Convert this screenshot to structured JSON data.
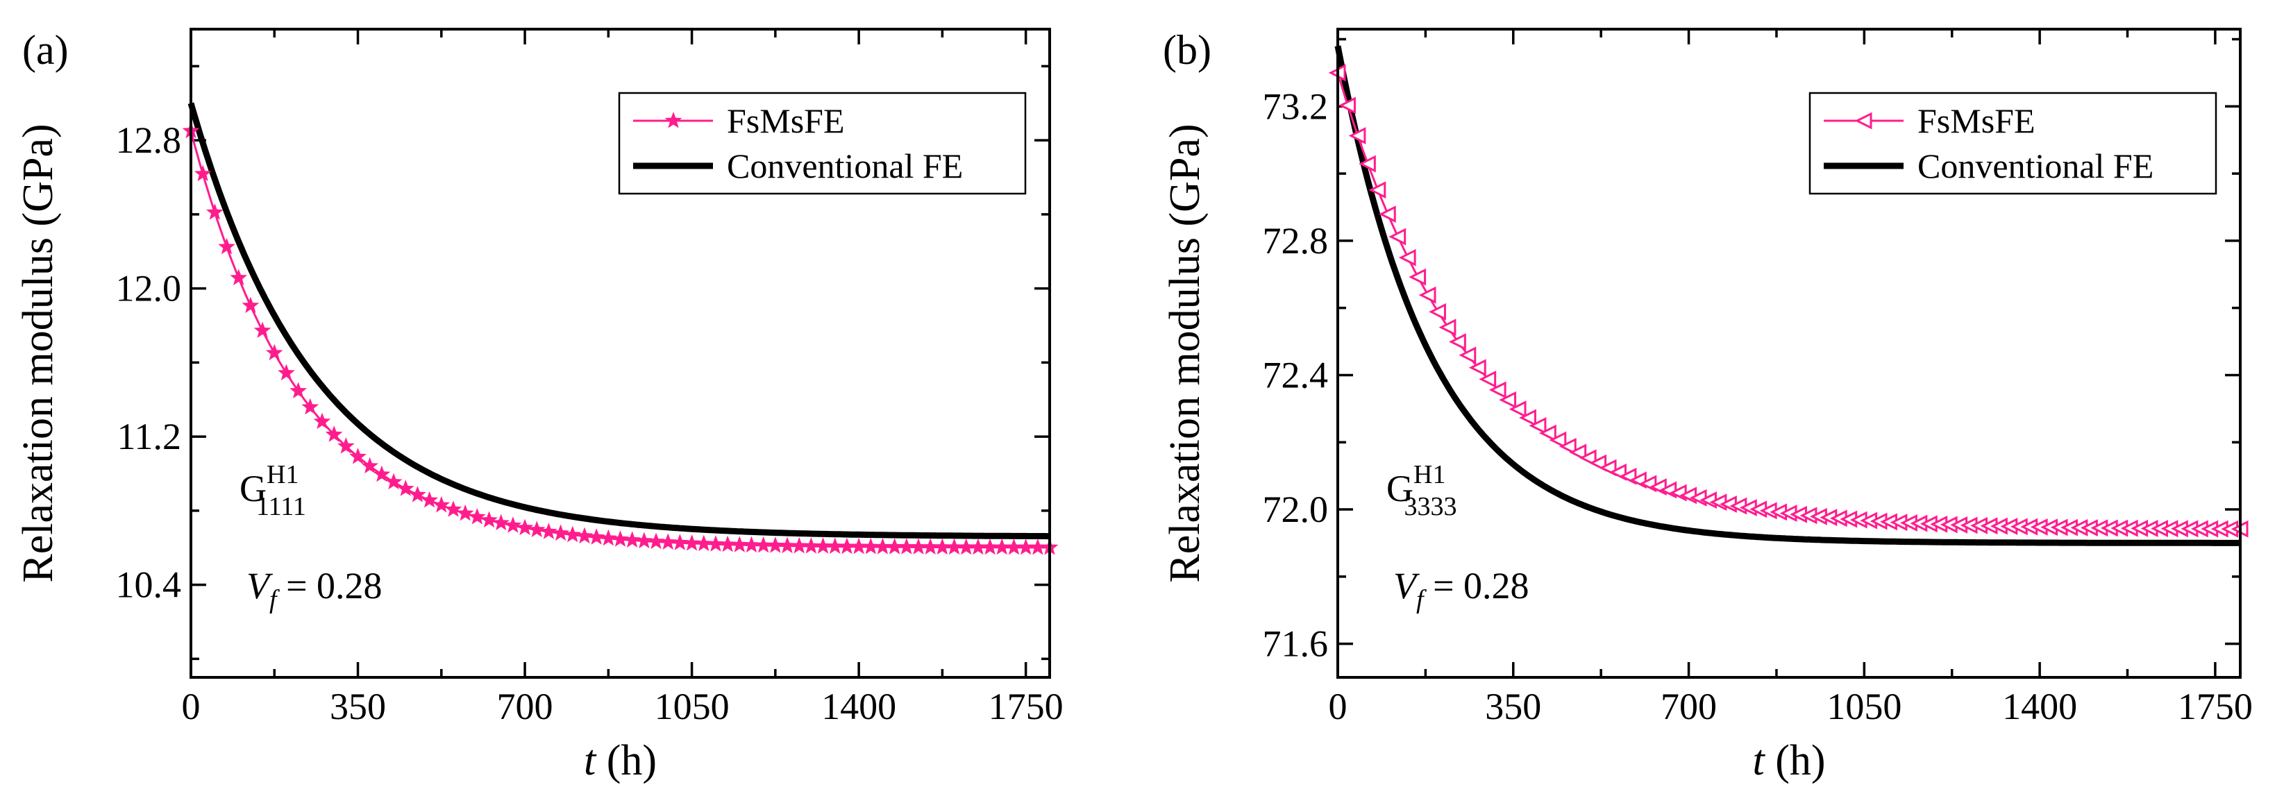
{
  "figure": {
    "background": "#ffffff"
  },
  "chart_data": [
    {
      "type": "line",
      "panel_label": "(a)",
      "xlabel_var": "t",
      "xlabel_unit": " (h)",
      "ylabel": "Relaxation modulus (GPa)",
      "xlim": [
        0,
        1800
      ],
      "ylim": [
        9.9,
        13.4
      ],
      "xticks": [
        0,
        350,
        700,
        1050,
        1400,
        1750
      ],
      "xtick_labels": [
        "0",
        "350",
        "700",
        "1050",
        "1400",
        "1750"
      ],
      "yticks": [
        10.4,
        11.2,
        12.0,
        12.8
      ],
      "ytick_labels": [
        "10.4",
        "11.2",
        "12.0",
        "12.8"
      ],
      "annotation_symbol": "G",
      "annotation_superscript": "H1",
      "annotation_subscript": "1111",
      "vf_symbol": "V",
      "vf_subscript": "f",
      "vf_value": " = 0.28",
      "legend": {
        "position": "top-right"
      },
      "series": [
        {
          "name": "FsMsFE",
          "color": "#ff1d8e",
          "marker": "star",
          "model": {
            "y_inf": 10.6,
            "amplitude": 2.25,
            "tau": 230
          },
          "x": [
            0,
            25,
            50,
            75,
            100,
            125,
            150,
            175,
            200,
            225,
            250,
            275,
            300,
            325,
            350,
            375,
            400,
            425,
            450,
            475,
            500,
            525,
            550,
            575,
            600,
            625,
            650,
            675,
            700,
            725,
            750,
            775,
            800,
            825,
            850,
            875,
            900,
            925,
            950,
            975,
            1000,
            1025,
            1050,
            1075,
            1100,
            1125,
            1150,
            1175,
            1200,
            1225,
            1250,
            1275,
            1300,
            1325,
            1350,
            1375,
            1400,
            1425,
            1450,
            1475,
            1500,
            1525,
            1550,
            1575,
            1600,
            1625,
            1650,
            1675,
            1700,
            1725,
            1750,
            1775,
            1800
          ]
        },
        {
          "name": "Conventional FE",
          "color": "#000000",
          "marker": "none",
          "model": {
            "y_inf": 10.66,
            "amplitude": 2.34,
            "tau": 260
          }
        }
      ]
    },
    {
      "type": "line",
      "panel_label": "(b)",
      "xlabel_var": "t",
      "xlabel_unit": " (h)",
      "ylabel": "Relaxation modulus (GPa)",
      "xlim": [
        0,
        1800
      ],
      "ylim": [
        71.5,
        73.43
      ],
      "xticks": [
        0,
        350,
        700,
        1050,
        1400,
        1750
      ],
      "xtick_labels": [
        "0",
        "350",
        "700",
        "1050",
        "1400",
        "1750"
      ],
      "yticks": [
        71.6,
        72.0,
        72.4,
        72.8,
        73.2
      ],
      "ytick_labels": [
        "71.6",
        "72.0",
        "72.4",
        "72.8",
        "73.2"
      ],
      "annotation_symbol": "G",
      "annotation_superscript": "H1",
      "annotation_subscript": "3333",
      "vf_symbol": "V",
      "vf_subscript": "f",
      "vf_value": " = 0.28",
      "legend": {
        "position": "top-right"
      },
      "series": [
        {
          "name": "FsMsFE",
          "color": "#ff1d8e",
          "marker": "left-triangle",
          "model": {
            "y_inf": 71.94,
            "amplitude": 1.36,
            "tau": 270
          },
          "x": [
            0,
            20,
            40,
            60,
            80,
            100,
            120,
            140,
            160,
            180,
            200,
            220,
            240,
            260,
            280,
            300,
            320,
            340,
            360,
            380,
            400,
            420,
            440,
            460,
            480,
            500,
            520,
            540,
            560,
            580,
            600,
            620,
            640,
            660,
            680,
            700,
            720,
            740,
            760,
            780,
            800,
            820,
            840,
            860,
            880,
            900,
            920,
            940,
            960,
            980,
            1000,
            1020,
            1040,
            1060,
            1080,
            1100,
            1120,
            1140,
            1160,
            1180,
            1200,
            1220,
            1240,
            1260,
            1280,
            1300,
            1320,
            1340,
            1360,
            1380,
            1400,
            1420,
            1440,
            1460,
            1480,
            1500,
            1520,
            1540,
            1560,
            1580,
            1600,
            1620,
            1640,
            1660,
            1680,
            1700,
            1720,
            1740,
            1760,
            1780,
            1800
          ]
        },
        {
          "name": "Conventional FE",
          "color": "#000000",
          "marker": "none",
          "model": {
            "y_inf": 71.9,
            "amplitude": 1.48,
            "tau": 190
          }
        }
      ]
    }
  ]
}
